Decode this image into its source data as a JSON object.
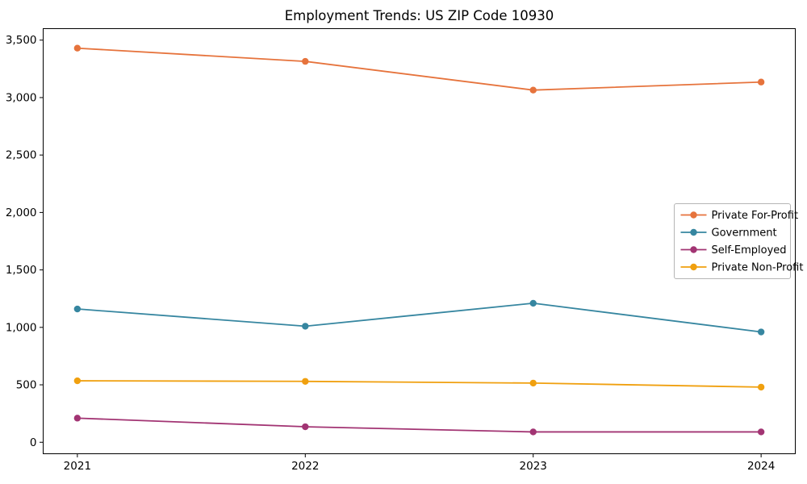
{
  "chart_data": {
    "type": "line",
    "title": "Employment Trends: US ZIP Code 10930",
    "xlabel": "",
    "ylabel": "",
    "x": [
      2021,
      2022,
      2023,
      2024
    ],
    "x_tick_labels": [
      "2021",
      "2022",
      "2023",
      "2024"
    ],
    "y_ticks": [
      0,
      500,
      1000,
      1500,
      2000,
      2500,
      3000,
      3500
    ],
    "y_tick_labels": [
      "0",
      "500",
      "1,000",
      "1,500",
      "2,000",
      "2,500",
      "3,000",
      "3,500"
    ],
    "xlim": [
      2020.85,
      2024.15
    ],
    "ylim": [
      -100,
      3600
    ],
    "grid": false,
    "legend_position": "center right",
    "series": [
      {
        "name": "Private For-Profit",
        "color": "#e6733c",
        "values": [
          3430,
          3315,
          3065,
          3135
        ]
      },
      {
        "name": "Government",
        "color": "#3686a0",
        "values": [
          1160,
          1010,
          1210,
          960
        ]
      },
      {
        "name": "Self-Employed",
        "color": "#a23473",
        "values": [
          210,
          135,
          90,
          90
        ]
      },
      {
        "name": "Private Non-Profit",
        "color": "#f0a00f",
        "values": [
          535,
          530,
          515,
          480
        ]
      }
    ],
    "styles": {
      "axis_color": "#000000",
      "legend_border_color": "#b5b5b5",
      "legend_background": "#ffffff",
      "plot_background": "#ffffff"
    }
  }
}
